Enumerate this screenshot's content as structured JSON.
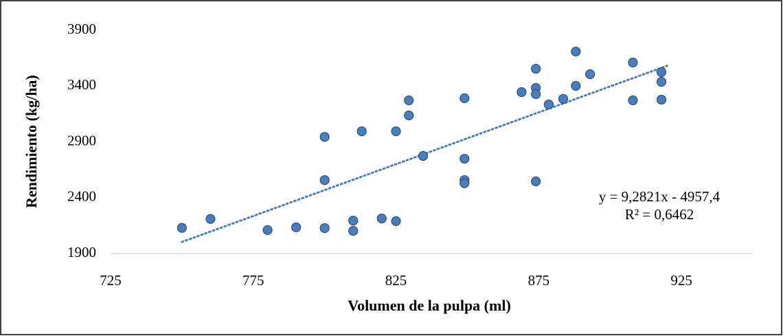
{
  "chart_data": {
    "type": "scatter",
    "x_label": "Volumen de la pulpa (ml)",
    "y_label": "Rendimiento (kg/ha)",
    "series": [
      {
        "color": "#4a7ebb",
        "x": [
          750,
          760,
          780,
          790,
          800,
          800,
          800,
          810,
          810,
          813,
          820,
          825,
          825,
          829.5,
          829.5,
          834.5,
          849,
          849,
          849,
          849,
          869,
          874,
          874,
          874,
          874,
          878.5,
          883.6,
          888,
          888,
          893,
          908,
          908,
          918,
          918,
          918
        ],
        "values": [
          2130,
          2210,
          2110,
          2135,
          2945,
          2558,
          2128,
          2195,
          2103,
          2995,
          2214,
          2995,
          2190,
          3272,
          3137,
          2774,
          3291,
          2749,
          2558,
          2530,
          3346,
          3555,
          3383,
          3328,
          2546,
          3235,
          3285,
          3709,
          3402,
          3506,
          3611,
          3272,
          3525,
          3438,
          3278
        ]
      }
    ],
    "trendline": {
      "color": "#4a7ebb",
      "slope": 9.2821,
      "intercept": -4957.4,
      "x_start": 750,
      "x_end": 920,
      "equation": "y = 9,2821x - 4957,4",
      "r_squared": "R² = 0,6462"
    },
    "xlim": [
      725,
      950
    ],
    "xticks": [
      725,
      775,
      825,
      875,
      925
    ],
    "ylim": [
      1900,
      3900
    ],
    "yticks": [
      1900,
      2400,
      2900,
      3400,
      3900
    ],
    "grid": false
  }
}
